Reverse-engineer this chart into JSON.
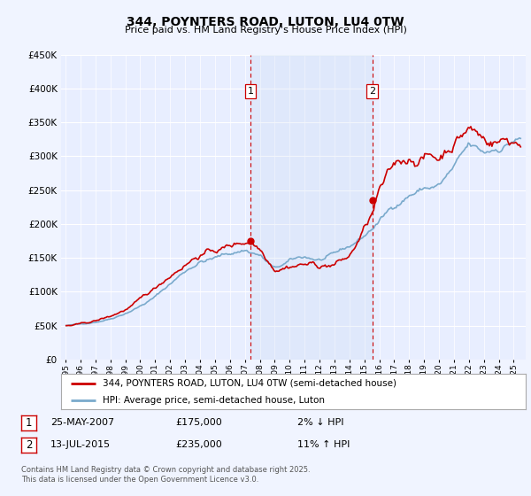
{
  "title": "344, POYNTERS ROAD, LUTON, LU4 0TW",
  "subtitle": "Price paid vs. HM Land Registry's House Price Index (HPI)",
  "legend_line1": "344, POYNTERS ROAD, LUTON, LU4 0TW (semi-detached house)",
  "legend_line2": "HPI: Average price, semi-detached house, Luton",
  "footnote": "Contains HM Land Registry data © Crown copyright and database right 2025.\nThis data is licensed under the Open Government Licence v3.0.",
  "sale1_date": "25-MAY-2007",
  "sale1_price": "£175,000",
  "sale1_hpi": "2% ↓ HPI",
  "sale2_date": "13-JUL-2015",
  "sale2_price": "£235,000",
  "sale2_hpi": "11% ↑ HPI",
  "sale1_x": 2007.38,
  "sale1_y": 175000,
  "sale2_x": 2015.54,
  "sale2_y": 235000,
  "ylim": [
    0,
    450000
  ],
  "xlim_left": 1994.7,
  "xlim_right": 2025.8,
  "background_color": "#f0f4ff",
  "plot_bg_color": "#e8eeff",
  "grid_color": "#ffffff",
  "red_line_color": "#cc0000",
  "blue_line_color": "#7aaacc",
  "vline_color": "#cc0000"
}
